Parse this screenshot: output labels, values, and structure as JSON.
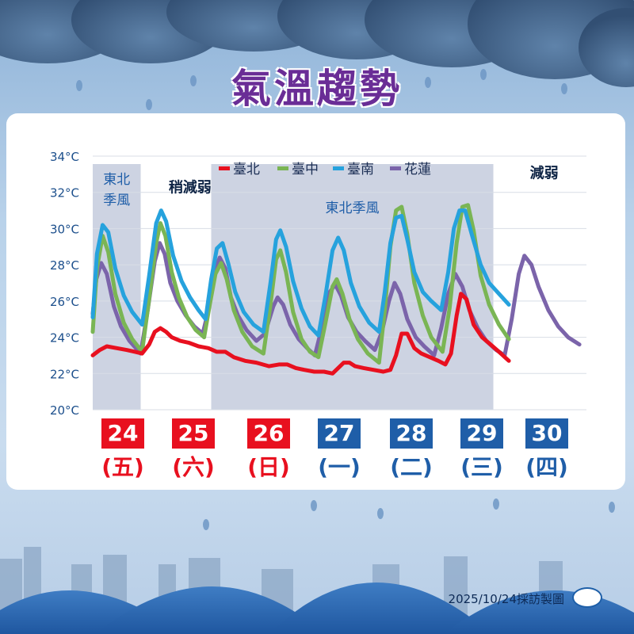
{
  "title": "氣溫趨勢",
  "footer": "2025/10/24採訪製圖",
  "logo_icon": "cwa-logo-icon",
  "colors": {
    "weekend": "#e8101f",
    "weekday": "#1f5ea8",
    "shade": "#cdd3e2"
  },
  "days": [
    {
      "date": "24",
      "weekday": "(五)",
      "type": "weekend"
    },
    {
      "date": "25",
      "weekday": "(六)",
      "type": "weekend"
    },
    {
      "date": "26",
      "weekday": "(日)",
      "type": "weekend"
    },
    {
      "date": "27",
      "weekday": "(一)",
      "type": "weekday"
    },
    {
      "date": "28",
      "weekday": "(二)",
      "type": "weekday"
    },
    {
      "date": "29",
      "weekday": "(三)",
      "type": "weekday"
    },
    {
      "date": "30",
      "weekday": "(四)",
      "type": "weekday"
    }
  ],
  "chart_data": {
    "type": "line",
    "ylim": [
      20,
      34
    ],
    "yticks": [
      "20°C",
      "22°C",
      "24°C",
      "26°C",
      "28°C",
      "30°C",
      "32°C",
      "34°C"
    ],
    "ytick_values": [
      20,
      22,
      24,
      26,
      28,
      30,
      32,
      34
    ],
    "xlim": [
      24,
      31
    ],
    "grid": "horizontal",
    "legend_position": "top",
    "shaded_periods": [
      {
        "start": 24.0,
        "end": 24.68,
        "label": "東北\n季風"
      },
      {
        "start": 25.68,
        "end": 29.68,
        "label": "東北季風"
      }
    ],
    "annotations": [
      {
        "text": "稍減弱",
        "x": 25.38,
        "y": 32.0
      },
      {
        "text": "減弱",
        "x": 30.4,
        "y": 32.8
      }
    ],
    "series": [
      {
        "name": "花蓮",
        "color": "#7b64aa",
        "points": [
          [
            24,
            25.3
          ],
          [
            24.05,
            27.2
          ],
          [
            24.12,
            28.1
          ],
          [
            24.2,
            27.5
          ],
          [
            24.3,
            25.7
          ],
          [
            24.4,
            24.6
          ],
          [
            24.52,
            23.8
          ],
          [
            24.68,
            23.1
          ],
          [
            24.78,
            25.5
          ],
          [
            24.88,
            28.2
          ],
          [
            24.95,
            29.2
          ],
          [
            25.02,
            28.6
          ],
          [
            25.1,
            27.0
          ],
          [
            25.2,
            26.0
          ],
          [
            25.32,
            25.2
          ],
          [
            25.44,
            24.6
          ],
          [
            25.56,
            24.2
          ],
          [
            25.64,
            25.5
          ],
          [
            25.72,
            27.6
          ],
          [
            25.8,
            28.4
          ],
          [
            25.88,
            27.8
          ],
          [
            25.96,
            26.2
          ],
          [
            26.06,
            25.2
          ],
          [
            26.18,
            24.4
          ],
          [
            26.32,
            23.8
          ],
          [
            26.44,
            24.2
          ],
          [
            26.56,
            25.7
          ],
          [
            26.62,
            26.2
          ],
          [
            26.7,
            25.8
          ],
          [
            26.8,
            24.7
          ],
          [
            26.92,
            23.9
          ],
          [
            27.04,
            23.4
          ],
          [
            27.15,
            23.0
          ],
          [
            27.26,
            24.7
          ],
          [
            27.36,
            26.5
          ],
          [
            27.44,
            26.9
          ],
          [
            27.52,
            26.3
          ],
          [
            27.62,
            25.1
          ],
          [
            27.74,
            24.3
          ],
          [
            27.86,
            23.8
          ],
          [
            28.0,
            23.3
          ],
          [
            28.1,
            24.3
          ],
          [
            28.2,
            26.0
          ],
          [
            28.28,
            27.0
          ],
          [
            28.36,
            26.4
          ],
          [
            28.46,
            25.0
          ],
          [
            28.58,
            24.0
          ],
          [
            28.7,
            23.5
          ],
          [
            28.84,
            23.0
          ],
          [
            28.94,
            24.5
          ],
          [
            29.04,
            26.4
          ],
          [
            29.14,
            27.5
          ],
          [
            29.24,
            26.8
          ],
          [
            29.34,
            25.5
          ],
          [
            29.46,
            24.5
          ],
          [
            29.58,
            23.8
          ],
          [
            29.72,
            23.3
          ],
          [
            29.84,
            23.0
          ],
          [
            29.94,
            25.0
          ],
          [
            30.04,
            27.5
          ],
          [
            30.12,
            28.5
          ],
          [
            30.22,
            28.0
          ],
          [
            30.32,
            26.8
          ],
          [
            30.46,
            25.5
          ],
          [
            30.6,
            24.6
          ],
          [
            30.74,
            24.0
          ],
          [
            30.9,
            23.6
          ]
        ]
      },
      {
        "name": "臺中",
        "color": "#7ab554",
        "points": [
          [
            24,
            24.3
          ],
          [
            24.06,
            27.8
          ],
          [
            24.14,
            29.6
          ],
          [
            24.22,
            28.7
          ],
          [
            24.32,
            26.4
          ],
          [
            24.44,
            24.8
          ],
          [
            24.56,
            23.9
          ],
          [
            24.7,
            23.2
          ],
          [
            24.8,
            26.1
          ],
          [
            24.9,
            29.2
          ],
          [
            24.96,
            30.3
          ],
          [
            25.03,
            29.6
          ],
          [
            25.12,
            27.6
          ],
          [
            25.22,
            26.2
          ],
          [
            25.34,
            25.1
          ],
          [
            25.46,
            24.4
          ],
          [
            25.58,
            24.0
          ],
          [
            25.66,
            25.8
          ],
          [
            25.74,
            27.5
          ],
          [
            25.82,
            28.1
          ],
          [
            25.9,
            27.2
          ],
          [
            26.0,
            25.5
          ],
          [
            26.12,
            24.3
          ],
          [
            26.26,
            23.5
          ],
          [
            26.42,
            23.1
          ],
          [
            26.52,
            25.8
          ],
          [
            26.6,
            28.3
          ],
          [
            26.66,
            28.8
          ],
          [
            26.74,
            27.6
          ],
          [
            26.84,
            25.4
          ],
          [
            26.96,
            23.9
          ],
          [
            27.08,
            23.2
          ],
          [
            27.2,
            22.9
          ],
          [
            27.3,
            24.8
          ],
          [
            27.4,
            26.8
          ],
          [
            27.46,
            27.2
          ],
          [
            27.54,
            26.4
          ],
          [
            27.64,
            25.0
          ],
          [
            27.76,
            23.9
          ],
          [
            27.9,
            23.1
          ],
          [
            28.06,
            22.6
          ],
          [
            28.14,
            25.5
          ],
          [
            28.22,
            29.0
          ],
          [
            28.3,
            31.0
          ],
          [
            28.38,
            31.2
          ],
          [
            28.46,
            29.7
          ],
          [
            28.56,
            27.0
          ],
          [
            28.68,
            25.2
          ],
          [
            28.8,
            24.0
          ],
          [
            28.96,
            23.2
          ],
          [
            29.06,
            25.6
          ],
          [
            29.16,
            29.2
          ],
          [
            29.24,
            31.2
          ],
          [
            29.32,
            31.3
          ],
          [
            29.4,
            29.9
          ],
          [
            29.5,
            27.4
          ],
          [
            29.62,
            25.8
          ],
          [
            29.76,
            24.7
          ],
          [
            29.9,
            23.9
          ]
        ]
      },
      {
        "name": "臺南",
        "color": "#26a2dd",
        "points": [
          [
            24,
            25.1
          ],
          [
            24.06,
            28.6
          ],
          [
            24.14,
            30.2
          ],
          [
            24.22,
            29.8
          ],
          [
            24.32,
            27.8
          ],
          [
            24.44,
            26.3
          ],
          [
            24.56,
            25.4
          ],
          [
            24.7,
            24.7
          ],
          [
            24.8,
            27.4
          ],
          [
            24.9,
            30.3
          ],
          [
            24.97,
            31.0
          ],
          [
            25.04,
            30.4
          ],
          [
            25.14,
            28.5
          ],
          [
            25.26,
            27.1
          ],
          [
            25.38,
            26.2
          ],
          [
            25.5,
            25.5
          ],
          [
            25.6,
            25.0
          ],
          [
            25.68,
            27.2
          ],
          [
            25.76,
            28.9
          ],
          [
            25.84,
            29.2
          ],
          [
            25.92,
            28.1
          ],
          [
            26.02,
            26.5
          ],
          [
            26.14,
            25.4
          ],
          [
            26.28,
            24.7
          ],
          [
            26.42,
            24.3
          ],
          [
            26.52,
            27.0
          ],
          [
            26.6,
            29.4
          ],
          [
            26.66,
            29.9
          ],
          [
            26.74,
            29.0
          ],
          [
            26.84,
            27.1
          ],
          [
            26.96,
            25.6
          ],
          [
            27.08,
            24.6
          ],
          [
            27.2,
            24.1
          ],
          [
            27.3,
            26.3
          ],
          [
            27.4,
            28.8
          ],
          [
            27.48,
            29.5
          ],
          [
            27.56,
            28.8
          ],
          [
            27.66,
            27.0
          ],
          [
            27.78,
            25.7
          ],
          [
            27.92,
            24.8
          ],
          [
            28.06,
            24.3
          ],
          [
            28.14,
            26.5
          ],
          [
            28.22,
            29.2
          ],
          [
            28.3,
            30.6
          ],
          [
            28.38,
            30.7
          ],
          [
            28.46,
            29.4
          ],
          [
            28.56,
            27.6
          ],
          [
            28.68,
            26.5
          ],
          [
            28.8,
            26.0
          ],
          [
            28.94,
            25.5
          ],
          [
            29.04,
            27.6
          ],
          [
            29.12,
            30.0
          ],
          [
            29.2,
            31.0
          ],
          [
            29.28,
            31.0
          ],
          [
            29.38,
            29.6
          ],
          [
            29.5,
            28.0
          ],
          [
            29.62,
            27.0
          ],
          [
            29.76,
            26.4
          ],
          [
            29.9,
            25.8
          ]
        ]
      },
      {
        "name": "臺北",
        "color": "#e8101f",
        "points": [
          [
            24,
            23.0
          ],
          [
            24.1,
            23.3
          ],
          [
            24.2,
            23.5
          ],
          [
            24.34,
            23.4
          ],
          [
            24.48,
            23.3
          ],
          [
            24.6,
            23.2
          ],
          [
            24.7,
            23.1
          ],
          [
            24.8,
            23.6
          ],
          [
            24.88,
            24.3
          ],
          [
            24.96,
            24.5
          ],
          [
            25.04,
            24.3
          ],
          [
            25.12,
            24.0
          ],
          [
            25.24,
            23.8
          ],
          [
            25.36,
            23.7
          ],
          [
            25.5,
            23.5
          ],
          [
            25.64,
            23.4
          ],
          [
            25.76,
            23.2
          ],
          [
            25.88,
            23.2
          ],
          [
            26.0,
            22.9
          ],
          [
            26.16,
            22.7
          ],
          [
            26.32,
            22.6
          ],
          [
            26.5,
            22.4
          ],
          [
            26.64,
            22.5
          ],
          [
            26.76,
            22.5
          ],
          [
            26.88,
            22.3
          ],
          [
            27.0,
            22.2
          ],
          [
            27.14,
            22.1
          ],
          [
            27.28,
            22.1
          ],
          [
            27.4,
            22.0
          ],
          [
            27.48,
            22.3
          ],
          [
            27.56,
            22.6
          ],
          [
            27.64,
            22.6
          ],
          [
            27.72,
            22.4
          ],
          [
            27.84,
            22.3
          ],
          [
            27.98,
            22.2
          ],
          [
            28.12,
            22.1
          ],
          [
            28.22,
            22.2
          ],
          [
            28.3,
            23.0
          ],
          [
            28.38,
            24.2
          ],
          [
            28.46,
            24.2
          ],
          [
            28.56,
            23.4
          ],
          [
            28.66,
            23.1
          ],
          [
            28.78,
            22.9
          ],
          [
            28.9,
            22.7
          ],
          [
            29.0,
            22.5
          ],
          [
            29.08,
            23.1
          ],
          [
            29.16,
            25.2
          ],
          [
            29.22,
            26.4
          ],
          [
            29.3,
            26.1
          ],
          [
            29.4,
            24.7
          ],
          [
            29.52,
            24.0
          ],
          [
            29.64,
            23.6
          ],
          [
            29.76,
            23.2
          ],
          [
            29.9,
            22.7
          ]
        ]
      }
    ]
  }
}
